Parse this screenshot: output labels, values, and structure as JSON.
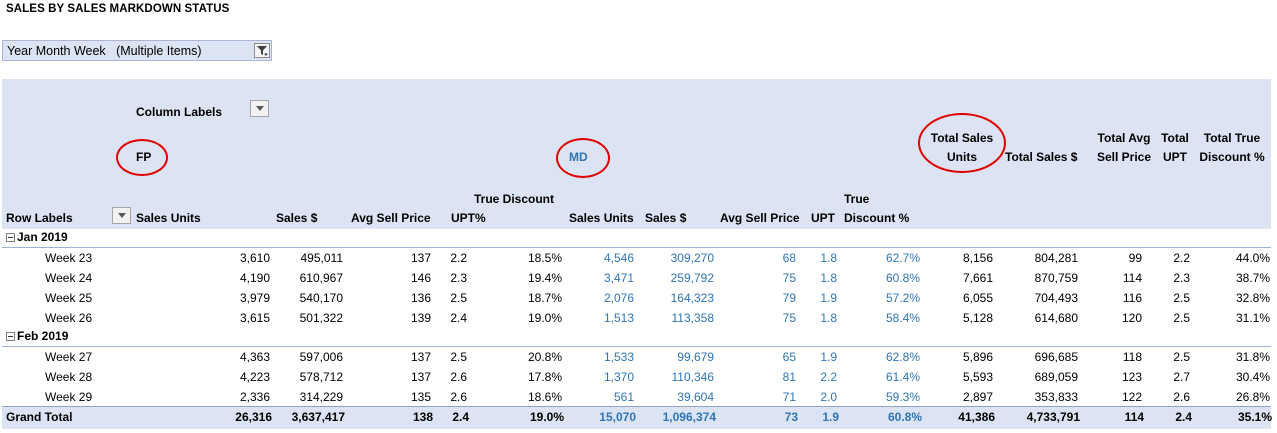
{
  "title": "SALES BY SALES MARKDOWN STATUS",
  "filter": {
    "label": "Year Month Week",
    "value": "(Multiple Items)"
  },
  "pivot": {
    "column_labels": "Column Labels",
    "row_labels": "Row Labels",
    "groups": {
      "fp": "FP",
      "md": "MD"
    },
    "headers": {
      "fp_sales_units": "Sales Units",
      "fp_sales": "Sales $",
      "fp_avg_sell_price": "Avg Sell Price",
      "fp_upt": "UPT",
      "fp_true_discount_1": "True Discount",
      "fp_true_discount_2": "%",
      "md_sales_units": "Sales Units",
      "md_sales": "Sales $",
      "md_avg_sell_price": "Avg Sell Price",
      "md_upt": "UPT",
      "md_true_discount_1": "True",
      "md_true_discount_2": "Discount %",
      "total_sales_units_1": "Total Sales",
      "total_sales_units_2": "Units",
      "total_sales": "Total Sales $",
      "total_avg_1": "Total Avg",
      "total_avg_2": "Sell Price",
      "total_upt_1": "Total",
      "total_upt_2": "UPT",
      "total_disc_1": "Total True",
      "total_disc_2": "Discount %"
    },
    "month_groups": [
      {
        "label": "Jan 2019",
        "rows": [
          {
            "label": "Week 23",
            "v": [
              "3,610",
              "495,011",
              "137",
              "2.2",
              "18.5%",
              "4,546",
              "309,270",
              "68",
              "1.8",
              "62.7%",
              "8,156",
              "804,281",
              "99",
              "2.2",
              "44.0%"
            ]
          },
          {
            "label": "Week 24",
            "v": [
              "4,190",
              "610,967",
              "146",
              "2.3",
              "19.4%",
              "3,471",
              "259,792",
              "75",
              "1.8",
              "60.8%",
              "7,661",
              "870,759",
              "114",
              "2.3",
              "38.7%"
            ]
          },
          {
            "label": "Week 25",
            "v": [
              "3,979",
              "540,170",
              "136",
              "2.5",
              "18.7%",
              "2,076",
              "164,323",
              "79",
              "1.9",
              "57.2%",
              "6,055",
              "704,493",
              "116",
              "2.5",
              "32.8%"
            ]
          },
          {
            "label": "Week 26",
            "v": [
              "3,615",
              "501,322",
              "139",
              "2.4",
              "19.0%",
              "1,513",
              "113,358",
              "75",
              "1.8",
              "58.4%",
              "5,128",
              "614,680",
              "120",
              "2.5",
              "31.1%"
            ]
          }
        ]
      },
      {
        "label": "Feb 2019",
        "rows": [
          {
            "label": "Week 27",
            "v": [
              "4,363",
              "597,006",
              "137",
              "2.5",
              "20.8%",
              "1,533",
              "99,679",
              "65",
              "1.9",
              "62.8%",
              "5,896",
              "696,685",
              "118",
              "2.5",
              "31.8%"
            ]
          },
          {
            "label": "Week 28",
            "v": [
              "4,223",
              "578,712",
              "137",
              "2.6",
              "17.8%",
              "1,370",
              "110,346",
              "81",
              "2.2",
              "61.4%",
              "5,593",
              "689,059",
              "123",
              "2.7",
              "30.4%"
            ]
          },
          {
            "label": "Week 29",
            "v": [
              "2,336",
              "314,229",
              "135",
              "2.6",
              "18.6%",
              "561",
              "39,604",
              "71",
              "2.0",
              "59.3%",
              "2,897",
              "353,833",
              "122",
              "2.6",
              "26.8%"
            ]
          }
        ]
      }
    ],
    "grand_total": {
      "label": "Grand Total",
      "v": [
        "26,316",
        "3,637,417",
        "138",
        "2.4",
        "19.0%",
        "15,070",
        "1,096,374",
        "73",
        "1.9",
        "60.8%",
        "41,386",
        "4,733,791",
        "114",
        "2.4",
        "35.1%"
      ]
    }
  },
  "colors": {
    "header_bg": "#dce3f2",
    "md_blue": "#2e75b6",
    "annotation_red": "#e00000"
  },
  "icons": {
    "filter": "funnel-filter-icon",
    "dropdown": "chevron-down-icon",
    "collapse": "minus-box-icon"
  }
}
